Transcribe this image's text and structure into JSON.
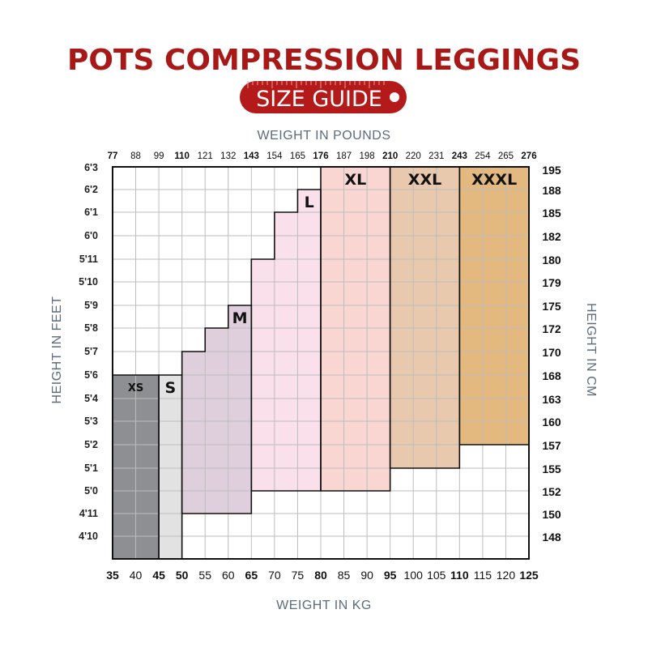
{
  "header": {
    "title": "POTS COMPRESSION LEGGINGS",
    "badge": "SIZE GUIDE"
  },
  "colors": {
    "title": "#a81817",
    "badge_bg": "#b51a1a",
    "axis_label": "#5d6b7c",
    "grid": "#bdbdbd",
    "text": "#111111"
  },
  "chart_data": {
    "type": "table",
    "xlabel_top": "WEIGHT IN POUNDS",
    "xlabel_bottom": "WEIGHT IN KG",
    "ylabel_left": "HEIGHT IN FEET",
    "ylabel_right": "HEIGHT IN CM",
    "x_range_kg": [
      35,
      125
    ],
    "kg_ticks": [
      "35",
      "40",
      "45",
      "50",
      "55",
      "60",
      "65",
      "70",
      "75",
      "80",
      "85",
      "90",
      "95",
      "100",
      "105",
      "110",
      "115",
      "120",
      "125"
    ],
    "kg_ticks_bold": [
      "35",
      "45",
      "50",
      "65",
      "80",
      "95",
      "110",
      "125"
    ],
    "lb_ticks": [
      "77",
      "88",
      "99",
      "110",
      "121",
      "132",
      "143",
      "154",
      "165",
      "176",
      "187",
      "198",
      "210",
      "220",
      "231",
      "243",
      "254",
      "265",
      "276"
    ],
    "lb_ticks_bold": [
      "77",
      "110",
      "143",
      "176",
      "210",
      "243",
      "276"
    ],
    "feet_ticks": [
      "6'3",
      "6'2",
      "6'1",
      "6'0",
      "5'11",
      "5'10",
      "5'9",
      "5'8",
      "5'7",
      "5'6",
      "5'4",
      "5'3",
      "5'2",
      "5'1",
      "5'0",
      "4'11",
      "4'10"
    ],
    "cm_ticks": [
      "195",
      "188",
      "185",
      "182",
      "180",
      "179",
      "175",
      "172",
      "170",
      "168",
      "163",
      "160",
      "157",
      "155",
      "152",
      "150",
      "148"
    ],
    "sizes": [
      {
        "name": "XS",
        "label": "XS",
        "color": "#8e8f92",
        "steps": [
          [
            35,
            45,
            168
          ]
        ]
      },
      {
        "name": "S",
        "label": "S",
        "color": "#e2e2e2",
        "steps": [
          [
            45,
            50,
            168
          ]
        ]
      },
      {
        "name": "M",
        "label": "M",
        "color": "#dfcfdc",
        "steps": [
          [
            50,
            55,
            170
          ],
          [
            55,
            60,
            172
          ],
          [
            60,
            65,
            175
          ]
        ]
      },
      {
        "name": "L",
        "label": "L",
        "color": "#f9e0ea",
        "steps": [
          [
            65,
            70,
            180
          ],
          [
            70,
            75,
            185
          ],
          [
            75,
            80,
            188
          ]
        ]
      },
      {
        "name": "XL",
        "label": "XL",
        "color": "#fad6d2",
        "steps": [
          [
            80,
            95,
            195
          ]
        ]
      },
      {
        "name": "XXL",
        "label": "XXL",
        "color": "#e8c9ad",
        "steps": [
          [
            95,
            110,
            195
          ]
        ]
      },
      {
        "name": "XXXL",
        "label": "XXXL",
        "color": "#e3b97f",
        "steps": [
          [
            110,
            125,
            195
          ]
        ]
      }
    ],
    "size_bottoms": {
      "XS": 148,
      "S": 148,
      "M": 152,
      "L": 155,
      "XL": 155,
      "XXL": 157,
      "XXXL": 160
    }
  }
}
